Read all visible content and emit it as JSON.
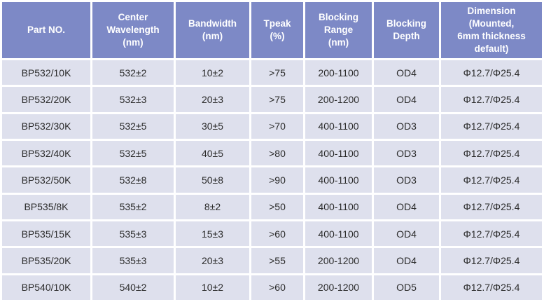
{
  "colors": {
    "header_bg": "#7D89C6",
    "header_text": "#FFFFFF",
    "cell_bg": "#DEE0ED",
    "cell_text": "#2B2B2B",
    "grid": "#FFFFFF"
  },
  "table": {
    "columns": [
      {
        "id": "part-no",
        "label": "Part NO."
      },
      {
        "id": "center-wavelength",
        "label": "Center\nWavelength\n(nm)"
      },
      {
        "id": "bandwidth",
        "label": "Bandwidth\n(nm)"
      },
      {
        "id": "tpeak",
        "label": "Tpeak\n(%)"
      },
      {
        "id": "blocking-range",
        "label": "Blocking\nRange\n(nm)"
      },
      {
        "id": "blocking-depth",
        "label": "Blocking\nDepth"
      },
      {
        "id": "dimension",
        "label": "Dimension\n(Mounted,\n6mm thickness\ndefault)"
      }
    ],
    "rows": [
      [
        "BP532/10K",
        "532±2",
        "10±2",
        ">75",
        "200-1100",
        "OD4",
        "Φ12.7/Φ25.4"
      ],
      [
        "BP532/20K",
        "532±3",
        "20±3",
        ">75",
        "200-1200",
        "OD4",
        "Φ12.7/Φ25.4"
      ],
      [
        "BP532/30K",
        "532±5",
        "30±5",
        ">70",
        "400-1100",
        "OD3",
        "Φ12.7/Φ25.4"
      ],
      [
        "BP532/40K",
        "532±5",
        "40±5",
        ">80",
        "400-1100",
        "OD3",
        "Φ12.7/Φ25.4"
      ],
      [
        "BP532/50K",
        "532±8",
        "50±8",
        ">90",
        "400-1100",
        "OD3",
        "Φ12.7/Φ25.4"
      ],
      [
        "BP535/8K",
        "535±2",
        "8±2",
        ">50",
        "400-1100",
        "OD4",
        "Φ12.7/Φ25.4"
      ],
      [
        "BP535/15K",
        "535±3",
        "15±3",
        ">60",
        "400-1100",
        "OD4",
        "Φ12.7/Φ25.4"
      ],
      [
        "BP535/20K",
        "535±3",
        "20±3",
        ">55",
        "200-1200",
        "OD4",
        "Φ12.7/Φ25.4"
      ],
      [
        "BP540/10K",
        "540±2",
        "10±2",
        ">60",
        "200-1200",
        "OD5",
        "Φ12.7/Φ25.4"
      ]
    ]
  }
}
